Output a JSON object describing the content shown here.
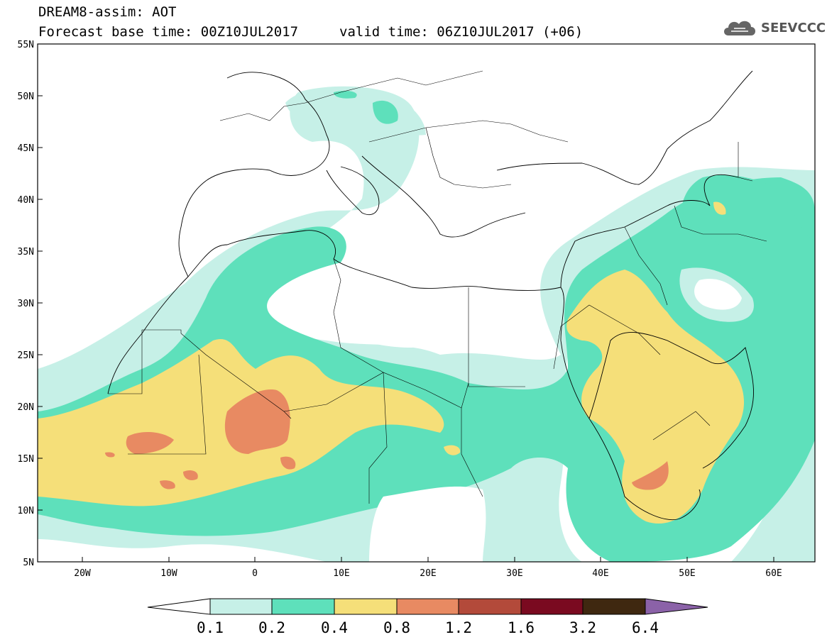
{
  "header": {
    "title": "DREAM8-assim: AOT",
    "base_time_label": "Forecast base time: 00Z10JUL2017",
    "valid_time_label": "valid time: 06Z10JUL2017 (+06)"
  },
  "logo": {
    "text": "SEEVCCC",
    "icon": "cloud-icon"
  },
  "map": {
    "lat_labels": [
      "55N",
      "50N",
      "45N",
      "40N",
      "35N",
      "30N",
      "25N",
      "20N",
      "15N",
      "10N",
      "5N"
    ],
    "lon_labels": [
      "20W",
      "10W",
      "0",
      "10E",
      "20E",
      "30E",
      "40E",
      "50E",
      "60E"
    ],
    "lat_range": [
      5,
      55
    ],
    "lon_range": [
      -25,
      65
    ]
  },
  "legend": {
    "title": "",
    "levels": [
      "0.1",
      "0.2",
      "0.4",
      "0.8",
      "1.2",
      "1.6",
      "3.2",
      "6.4"
    ],
    "colors": [
      "#ffffff",
      "#c6f0e7",
      "#5ee0bb",
      "#f5df79",
      "#e88a62",
      "#b34a3a",
      "#7a0a20",
      "#3f2810",
      "#8b62a8"
    ]
  },
  "colors": {
    "very_low": "#c6f0e7",
    "low": "#5ee0bb",
    "medium": "#f5df79",
    "high": "#e88a62",
    "very_high": "#b34a3a"
  }
}
